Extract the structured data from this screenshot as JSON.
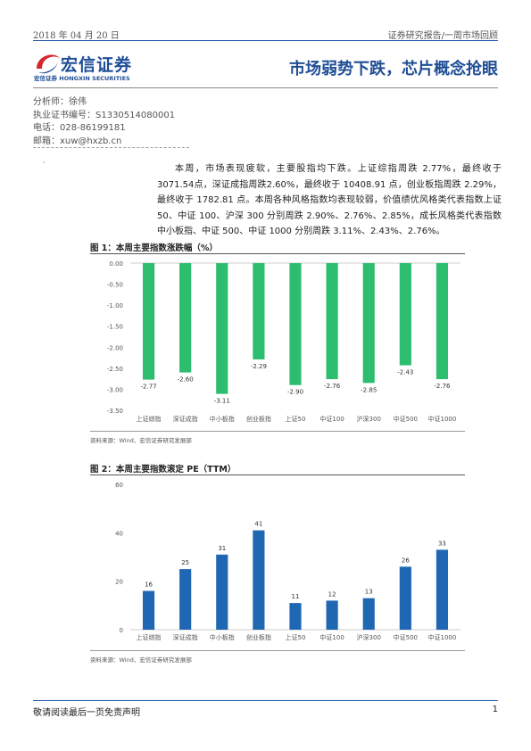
{
  "header": {
    "date": "2018 年 04 月 20 日",
    "report_type": "证券研究报告/一周市场回顾",
    "logo_name": "宏信证券",
    "logo_sub_cn": "宏信证券",
    "logo_sub_en": "HONGXIN SECURITIES",
    "title": "市场弱势下跌，芯片概念抢眼"
  },
  "analyst": {
    "name": "分析师：徐伟",
    "license": "执业证书编号：S1330514080001",
    "phone": "电话：028-86199181",
    "email": "邮箱：xuw@hxzb.cn"
  },
  "summary": {
    "bullet": "·",
    "text": "本周，市场表现疲软，主要股指均下跌。上证综指周跌 2.77%，最终收于 3071.54点，深证成指周跌2.60%，最终收于 10408.91 点，创业板指周跌 2.29%，最终收于 1782.81 点。本周各种风格指数均表现较弱，价值绩优风格类代表指数上证 50、中证 100、沪深 300 分别周跌 2.90%、2.76%、2.85%，成长风格类代表指数中小板指、中证 500、中证 1000 分别周跌 3.11%、2.43%、2.76%。"
  },
  "figure1": {
    "title": "图 1：本周主要指数涨跌幅（%）",
    "source": "资料来源：Wind、宏信证券研究发展部"
  },
  "figure2": {
    "title": "图 2：本周主要指数滚定 PE（TTM）",
    "source": "资料来源：Wind、宏信证券研究发展部"
  },
  "chart_data": [
    {
      "type": "bar",
      "categories": [
        "上证综指",
        "深证成指",
        "中小板指",
        "创业板指",
        "上证50",
        "中证100",
        "沪深300",
        "中证500",
        "中证1000"
      ],
      "values": [
        -2.77,
        -2.6,
        -3.11,
        -2.29,
        -2.9,
        -2.76,
        -2.85,
        -2.43,
        -2.76
      ],
      "labels": [
        "-2.77",
        "-2.60",
        "-3.11",
        "-2.29",
        "-2.90",
        "-2.76",
        "-2.85",
        "-2.43",
        "-2.76"
      ],
      "yticks": [
        "0.00",
        "-0.50",
        "-1.00",
        "-1.50",
        "-2.00",
        "-2.50",
        "-3.00",
        "-3.50"
      ],
      "ylim": [
        -3.5,
        0
      ],
      "color": "#2dbd6e",
      "grid": false
    },
    {
      "type": "bar",
      "categories": [
        "上证综指",
        "深证成指",
        "中小板指",
        "创业板指",
        "上证50",
        "中证100",
        "沪深300",
        "中证500",
        "中证1000"
      ],
      "values": [
        16,
        25,
        31,
        41,
        11,
        12,
        13,
        26,
        33
      ],
      "labels": [
        "16",
        "25",
        "31",
        "41",
        "11",
        "12",
        "13",
        "26",
        "33"
      ],
      "yticks": [
        "0",
        "20",
        "40",
        "60"
      ],
      "ylim": [
        0,
        60
      ],
      "color": "#1f67b3",
      "grid": false
    }
  ],
  "footer": {
    "disclaimer": "敬请阅读最后一页免责声明",
    "page": "1"
  }
}
